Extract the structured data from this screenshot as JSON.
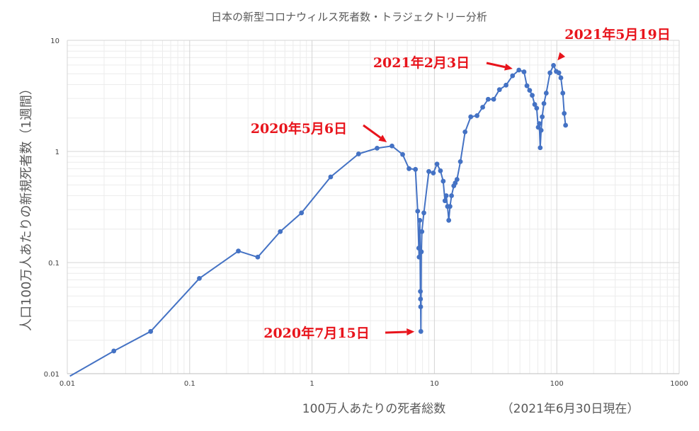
{
  "chart_data": {
    "type": "scatter",
    "title": "日本の新型コロナウィルス死者数・トラジェクトリー分析",
    "xlabel": "100万人あたりの死者総数",
    "xnote": "（2021年6月30日現在）",
    "ylabel": "人口100万人あたりの新規死者数（1週間）",
    "xscale": "log",
    "yscale": "log",
    "xlim": [
      0.01,
      1000
    ],
    "ylim": [
      0.01,
      10
    ],
    "grid": true,
    "x_ticks": [
      "0.01",
      "0.1",
      "1",
      "10",
      "100",
      "1000"
    ],
    "y_ticks": [
      "0.01",
      "0.1",
      "1",
      "10"
    ],
    "line_color": "#4472c4",
    "annotation_color": "#e8141c",
    "series": [
      {
        "points": [
          [
            0.0105,
            0.0095
          ],
          [
            0.024,
            0.016
          ],
          [
            0.048,
            0.024
          ],
          [
            0.12,
            0.072
          ],
          [
            0.25,
            0.127
          ],
          [
            0.36,
            0.112
          ],
          [
            0.55,
            0.19
          ],
          [
            0.82,
            0.28
          ],
          [
            1.42,
            0.59
          ],
          [
            2.4,
            0.95
          ],
          [
            3.4,
            1.07
          ],
          [
            4.5,
            1.12
          ],
          [
            5.5,
            0.94
          ],
          [
            6.2,
            0.7
          ],
          [
            7.0,
            0.69
          ],
          [
            7.3,
            0.29
          ],
          [
            7.45,
            0.135
          ],
          [
            7.5,
            0.112
          ],
          [
            7.6,
            0.24
          ],
          [
            7.68,
            0.055
          ],
          [
            7.7,
            0.047
          ],
          [
            7.72,
            0.04
          ],
          [
            7.75,
            0.024
          ],
          [
            7.82,
            0.125
          ],
          [
            7.9,
            0.19
          ],
          [
            8.2,
            0.28
          ],
          [
            9.0,
            0.66
          ],
          [
            9.8,
            0.64
          ],
          [
            10.5,
            0.77
          ],
          [
            11.2,
            0.67
          ],
          [
            11.8,
            0.54
          ],
          [
            12.2,
            0.36
          ],
          [
            12.5,
            0.4
          ],
          [
            12.8,
            0.32
          ],
          [
            13.1,
            0.24
          ],
          [
            13.4,
            0.32
          ],
          [
            13.8,
            0.4
          ],
          [
            14.4,
            0.49
          ],
          [
            14.8,
            0.52
          ],
          [
            15.3,
            0.56
          ],
          [
            16.3,
            0.81
          ],
          [
            17.8,
            1.5
          ],
          [
            19.8,
            2.05
          ],
          [
            22.3,
            2.1
          ],
          [
            24.8,
            2.5
          ],
          [
            27.5,
            2.95
          ],
          [
            30.5,
            2.95
          ],
          [
            34.0,
            3.6
          ],
          [
            38.5,
            3.95
          ],
          [
            43.5,
            4.8
          ],
          [
            49.0,
            5.4
          ],
          [
            54.0,
            5.2
          ],
          [
            57.0,
            3.9
          ],
          [
            60.0,
            3.55
          ],
          [
            63.0,
            3.2
          ],
          [
            66.0,
            2.65
          ],
          [
            68.5,
            2.45
          ],
          [
            70.5,
            1.65
          ],
          [
            72.0,
            1.78
          ],
          [
            73.2,
            1.08
          ],
          [
            74.5,
            1.55
          ],
          [
            76.0,
            2.05
          ],
          [
            78.5,
            2.7
          ],
          [
            82.0,
            3.35
          ],
          [
            88.0,
            5.1
          ],
          [
            94.0,
            5.95
          ],
          [
            99.0,
            5.25
          ],
          [
            104.0,
            5.1
          ],
          [
            108.0,
            4.6
          ],
          [
            112.0,
            3.35
          ],
          [
            115.0,
            2.2
          ],
          [
            118.0,
            1.72
          ]
        ]
      }
    ],
    "annotations": [
      {
        "text": "2021年5月19日",
        "x": 94.0,
        "y": 5.95
      },
      {
        "text": "2021年2月3日",
        "x": 49.0,
        "y": 5.4
      },
      {
        "text": "2020年5月6日",
        "x": 4.5,
        "y": 1.12
      },
      {
        "text": "2020年7月15日",
        "x": 7.75,
        "y": 0.024
      }
    ]
  }
}
